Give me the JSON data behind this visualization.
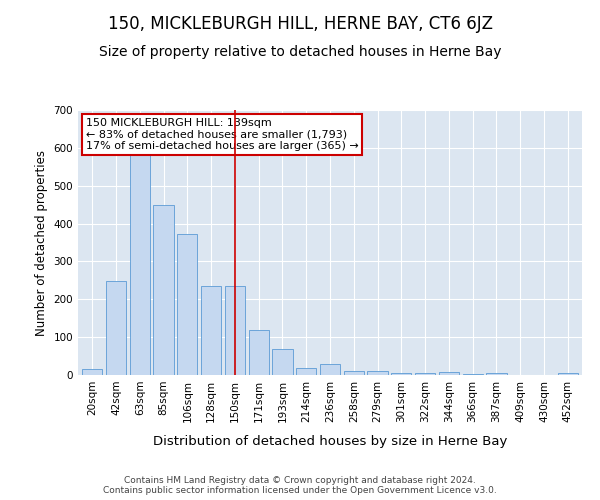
{
  "title": "150, MICKLEBURGH HILL, HERNE BAY, CT6 6JZ",
  "subtitle": "Size of property relative to detached houses in Herne Bay",
  "xlabel": "Distribution of detached houses by size in Herne Bay",
  "ylabel": "Number of detached properties",
  "categories": [
    "20sqm",
    "42sqm",
    "63sqm",
    "85sqm",
    "106sqm",
    "128sqm",
    "150sqm",
    "171sqm",
    "193sqm",
    "214sqm",
    "236sqm",
    "258sqm",
    "279sqm",
    "301sqm",
    "322sqm",
    "344sqm",
    "366sqm",
    "387sqm",
    "409sqm",
    "430sqm",
    "452sqm"
  ],
  "values": [
    15,
    248,
    588,
    448,
    372,
    236,
    236,
    118,
    68,
    18,
    28,
    10,
    10,
    5,
    5,
    7,
    2,
    6,
    0,
    0,
    5
  ],
  "bar_color": "#c5d8f0",
  "bar_edge_color": "#5b9bd5",
  "vline_x": 6,
  "vline_color": "#cc0000",
  "annotation_text": "150 MICKLEBURGH HILL: 139sqm\n← 83% of detached houses are smaller (1,793)\n17% of semi-detached houses are larger (365) →",
  "annotation_box_color": "#ffffff",
  "annotation_box_edge_color": "#cc0000",
  "ylim": [
    0,
    700
  ],
  "yticks": [
    0,
    100,
    200,
    300,
    400,
    500,
    600,
    700
  ],
  "plot_bg_color": "#dce6f1",
  "footnote": "Contains HM Land Registry data © Crown copyright and database right 2024.\nContains public sector information licensed under the Open Government Licence v3.0.",
  "title_fontsize": 12,
  "subtitle_fontsize": 10,
  "xlabel_fontsize": 9.5,
  "ylabel_fontsize": 8.5,
  "tick_fontsize": 7.5,
  "annotation_fontsize": 8,
  "footnote_fontsize": 6.5
}
